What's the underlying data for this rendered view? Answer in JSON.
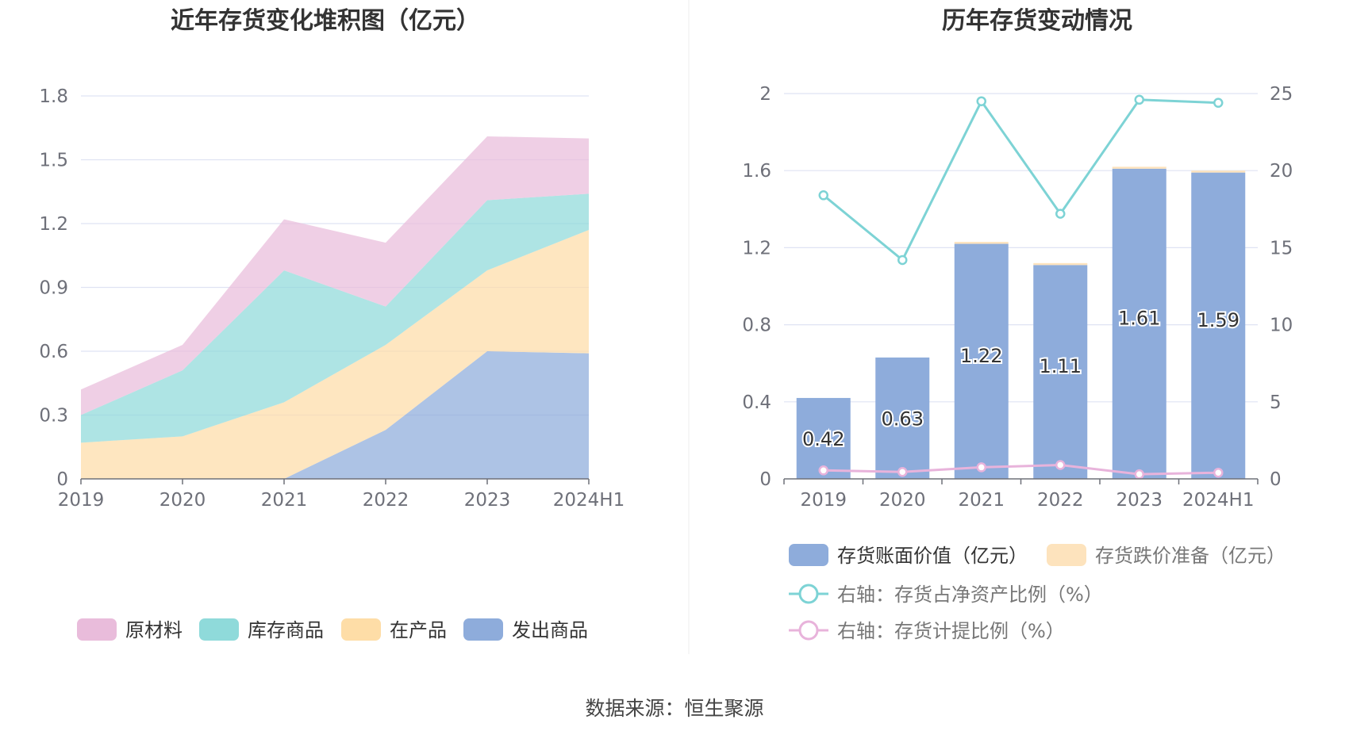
{
  "colors": {
    "raw_material": "#e9bcdb",
    "finished_goods": "#8fdada",
    "wip": "#fedda7",
    "shipped_goods": "#8eacdb",
    "bar_value": "#8eacdb",
    "bar_reserve": "#fde3bd",
    "line_ratio_net_assets": "#7dd3d5",
    "line_provision_ratio": "#e8b3db",
    "grid": "#dfe3f3",
    "axis_text": "#6e7079",
    "title": "#333333"
  },
  "footer": {
    "source": "数据来源：恒生聚源"
  },
  "chart_data": [
    {
      "type": "area",
      "stacked": true,
      "title": "近年存货变化堆积图（亿元）",
      "categories": [
        "2019",
        "2020",
        "2021",
        "2022",
        "2023",
        "2024H1"
      ],
      "ylim": [
        0,
        1.8
      ],
      "yticks": [
        "0",
        "0.3",
        "0.6",
        "0.9",
        "1.2",
        "1.5",
        "1.8"
      ],
      "grid": true,
      "legend_position": "bottom",
      "series": [
        {
          "name": "发出商品",
          "color_key": "shipped_goods",
          "values": [
            0,
            0,
            0,
            0.23,
            0.6,
            0.59
          ]
        },
        {
          "name": "在产品",
          "color_key": "wip",
          "values": [
            0.17,
            0.2,
            0.36,
            0.4,
            0.38,
            0.58
          ]
        },
        {
          "name": "库存商品",
          "color_key": "finished_goods",
          "values": [
            0.13,
            0.31,
            0.62,
            0.18,
            0.33,
            0.17
          ]
        },
        {
          "name": "原材料",
          "color_key": "raw_material",
          "values": [
            0.12,
            0.12,
            0.24,
            0.3,
            0.3,
            0.26
          ]
        }
      ],
      "legend_order": [
        "原材料",
        "库存商品",
        "在产品",
        "发出商品"
      ]
    },
    {
      "type": "bar",
      "stacked": true,
      "title": "历年存货变动情况",
      "categories": [
        "2019",
        "2020",
        "2021",
        "2022",
        "2023",
        "2024H1"
      ],
      "ylim": [
        0,
        2
      ],
      "yticks": [
        "0",
        "0.4",
        "0.8",
        "1.2",
        "1.6",
        "2"
      ],
      "y2lim": [
        0,
        25
      ],
      "y2ticks": [
        "0",
        "5",
        "10",
        "15",
        "20",
        "25"
      ],
      "grid": true,
      "legend_position": "bottom",
      "series": [
        {
          "name": "存货账面价值（亿元）",
          "kind": "bar",
          "color_key": "bar_value",
          "values": [
            0.42,
            0.63,
            1.22,
            1.11,
            1.61,
            1.59
          ],
          "labels": [
            "0.42",
            "0.63",
            "1.22",
            "1.11",
            "1.61",
            "1.59"
          ]
        },
        {
          "name": "存货跌价准备（亿元）",
          "kind": "bar",
          "color_key": "bar_reserve",
          "values": [
            0,
            0,
            0.01,
            0.01,
            0.01,
            0.01
          ]
        },
        {
          "name": "右轴：存货占净资产比例（%）",
          "kind": "line",
          "axis": "right",
          "color_key": "line_ratio_net_assets",
          "values": [
            18.4,
            14.2,
            24.5,
            17.2,
            24.6,
            24.4
          ]
        },
        {
          "name": "右轴：存货计提比例（%）",
          "kind": "line",
          "axis": "right",
          "color_key": "line_provision_ratio",
          "values": [
            0.55,
            0.45,
            0.75,
            0.9,
            0.3,
            0.4
          ]
        }
      ]
    }
  ]
}
